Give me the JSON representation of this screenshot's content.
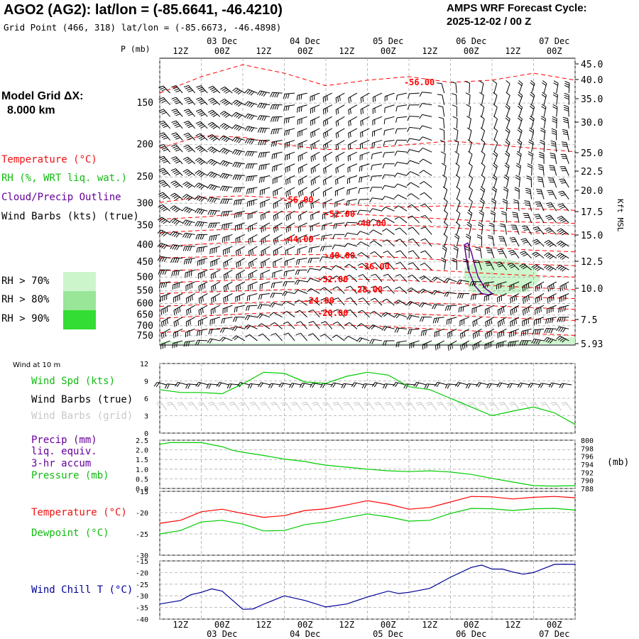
{
  "header": {
    "title": "AGO2 (AG2):  lat/lon = (-85.6641, -46.4210)",
    "grid_point": "Grid Point (466, 318) lat/lon = (-85.6673, -46.4898)",
    "cycle_line1": "AMPS WRF Forecast Cycle:",
    "cycle_line2": "2025-12-02 / 00  Z"
  },
  "left_panel": {
    "model_grid_line1": "Model Grid ΔX:",
    "model_grid_line2": "8.000 km",
    "legend_temperature": "Temperature (°C)",
    "legend_rh": "RH (%, WRT liq. wat.)",
    "legend_cloud": "Cloud/Precip Outline",
    "legend_wind": "Wind Barbs (kts) (true)",
    "rh_bins": [
      {
        "label": "RH > 70%",
        "color": "#ccf5cc"
      },
      {
        "label": "RH > 80%",
        "color": "#99e699"
      },
      {
        "label": "RH > 90%",
        "color": "#33dd33"
      }
    ],
    "wind10_title": "Wind at 10 m",
    "wind10_spd": "Wind Spd (kts)",
    "wind10_barbs_true": "Wind Barbs (true)",
    "wind10_barbs_grid": "Wind Barbs (grid)",
    "precip_line1": "Precip (mm)",
    "precip_line2": "liq. equiv.",
    "precip_line3": "3-hr accum",
    "pressure_label": "Pressure (mb)",
    "temp_label": "Temperature (°C)",
    "dew_label": "Dewpoint (°C)",
    "windchill_label": "Wind Chill T (°C)"
  },
  "axes": {
    "p_label": "P (mb)",
    "kft_label": "Kft MSL",
    "mb_label": "(mb)",
    "time_labels": [
      "12Z",
      "00Z",
      "12Z",
      "00Z",
      "12Z",
      "00Z",
      "12Z",
      "00Z",
      "12Z",
      "00Z"
    ],
    "date_labels": [
      "03 Dec",
      "04 Dec",
      "05 Dec",
      "06 Dec",
      "07 Dec"
    ]
  },
  "colors": {
    "temperature": "#ff0000",
    "rh": "#00cc00",
    "cloud": "#660099",
    "pressure": "#00cc00",
    "windchill": "#000099",
    "grid": "#aaaaaa"
  },
  "chart_data": [
    {
      "type": "heatmap",
      "name": "time-height cross section",
      "x_hours": [
        0,
        120
      ],
      "pressure_ticks": [
        150,
        200,
        250,
        300,
        350,
        400,
        450,
        500,
        550,
        600,
        650,
        700,
        750
      ],
      "ylim_mb": [
        800,
        110
      ],
      "height_ticks_kft": [
        45.0,
        40.0,
        35.0,
        30.0,
        25.0,
        22.5,
        20.0,
        17.5,
        15.0,
        12.5,
        10.0,
        7.5,
        5.93
      ],
      "isotherm_labels": [
        {
          "label": "-56.00",
          "t": 75,
          "p": 130
        },
        {
          "label": "-56.00",
          "t": 40,
          "p": 293
        },
        {
          "label": "-52.00",
          "t": 52,
          "p": 323
        },
        {
          "label": "-48.00",
          "t": 61,
          "p": 345
        },
        {
          "label": "-44.00",
          "t": 40,
          "p": 385
        },
        {
          "label": "-40.00",
          "t": 52,
          "p": 431
        },
        {
          "label": "-36.00",
          "t": 62,
          "p": 465
        },
        {
          "label": "-32.00",
          "t": 50,
          "p": 508
        },
        {
          "label": "-28.00",
          "t": 60,
          "p": 545
        },
        {
          "label": "-24.00",
          "t": 46,
          "p": 589
        },
        {
          "label": "-20.00",
          "t": 50,
          "p": 642
        }
      ],
      "isotherms": [
        {
          "t_hours": [
            0,
            12,
            24,
            36,
            48,
            60,
            72,
            84,
            96,
            108,
            120
          ],
          "p_mb": [
            140,
            125,
            115,
            122,
            133,
            128,
            125,
            130,
            128,
            122,
            128
          ]
        },
        {
          "t_hours": [
            0,
            12,
            24,
            36,
            48,
            60,
            72,
            84,
            96,
            108,
            120
          ],
          "p_mb": [
            205,
            188,
            190,
            200,
            207,
            205,
            200,
            195,
            200,
            205,
            210
          ]
        },
        {
          "t_hours": [
            0,
            12,
            24,
            36,
            48,
            60,
            72,
            84,
            96,
            108,
            120
          ],
          "p_mb": [
            298,
            288,
            285,
            290,
            300,
            305,
            308,
            305,
            310,
            312,
            315
          ]
        },
        {
          "t_hours": [
            0,
            12,
            24,
            36,
            48,
            60,
            72,
            84,
            96,
            108,
            120
          ],
          "p_mb": [
            335,
            330,
            322,
            318,
            320,
            325,
            330,
            335,
            340,
            342,
            345
          ]
        },
        {
          "t_hours": [
            0,
            12,
            24,
            36,
            48,
            60,
            72,
            84,
            96,
            108,
            120
          ],
          "p_mb": [
            368,
            362,
            358,
            355,
            350,
            348,
            350,
            355,
            362,
            368,
            372
          ]
        },
        {
          "t_hours": [
            0,
            12,
            24,
            36,
            48,
            60,
            72,
            84,
            96,
            108,
            120
          ],
          "p_mb": [
            405,
            398,
            392,
            388,
            382,
            385,
            392,
            400,
            408,
            415,
            420
          ]
        },
        {
          "t_hours": [
            0,
            12,
            24,
            36,
            48,
            60,
            72,
            84,
            96,
            108,
            120
          ],
          "p_mb": [
            438,
            435,
            430,
            428,
            428,
            432,
            438,
            445,
            452,
            458,
            462
          ]
        },
        {
          "t_hours": [
            0,
            12,
            24,
            36,
            48,
            60,
            72,
            84,
            96,
            108,
            120
          ],
          "p_mb": [
            478,
            475,
            470,
            466,
            465,
            468,
            472,
            480,
            488,
            495,
            500
          ]
        },
        {
          "t_hours": [
            0,
            12,
            24,
            36,
            48,
            60,
            72,
            84,
            96,
            108,
            120
          ],
          "p_mb": [
            520,
            515,
            510,
            505,
            505,
            508,
            512,
            520,
            530,
            538,
            545
          ]
        },
        {
          "t_hours": [
            0,
            12,
            24,
            36,
            48,
            60,
            72,
            84,
            96,
            108,
            120
          ],
          "p_mb": [
            560,
            555,
            550,
            545,
            545,
            548,
            552,
            558,
            565,
            575,
            580
          ]
        },
        {
          "t_hours": [
            0,
            12,
            24,
            36,
            48,
            60,
            72,
            84,
            96,
            108,
            120
          ],
          "p_mb": [
            612,
            605,
            598,
            592,
            590,
            592,
            596,
            602,
            610,
            618,
            625
          ]
        },
        {
          "t_hours": [
            0,
            12,
            24,
            36,
            48,
            60,
            72,
            84,
            96,
            108,
            120
          ],
          "p_mb": [
            665,
            655,
            645,
            638,
            635,
            640,
            645,
            652,
            660,
            668,
            675
          ]
        },
        {
          "t_hours": [
            0,
            12,
            24,
            36,
            48,
            60,
            72,
            84,
            96,
            108,
            120
          ],
          "p_mb": [
            735,
            720,
            705,
            698,
            695,
            700,
            710,
            720,
            730,
            740,
            748
          ]
        }
      ],
      "rh_region_70": {
        "t_hours": [
          88,
          93,
          100,
          108,
          110,
          106,
          98,
          90,
          88
        ],
        "p_mb": [
          470,
          440,
          440,
          465,
          510,
          555,
          565,
          555,
          510
        ]
      },
      "rh_region_surface": {
        "t_hours": [
          0,
          3,
          10,
          20,
          40,
          60,
          80,
          95,
          110,
          118,
          120,
          120,
          0
        ],
        "p_mb": [
          785,
          780,
          786,
          790,
          790,
          790,
          790,
          785,
          780,
          760,
          755,
          795,
          795
        ]
      },
      "cloud_outline": {
        "t_hours": [
          88,
          89,
          90,
          91,
          92,
          94,
          96,
          95,
          93,
          91,
          89,
          88
        ],
        "p_mb": [
          400,
          395,
          420,
          460,
          500,
          540,
          560,
          565,
          560,
          530,
          470,
          400
        ]
      }
    },
    {
      "type": "line",
      "name": "10 m wind speed",
      "title": "Wind at 10 m",
      "ylabel": "Wind Spd (kts)",
      "ylim": [
        0,
        12
      ],
      "yticks": [
        0,
        3,
        6,
        9,
        12
      ],
      "x_hours": [
        0,
        6,
        12,
        18,
        24,
        30,
        36,
        42,
        48,
        54,
        60,
        66,
        72,
        78,
        84,
        90,
        96,
        102,
        108,
        114,
        120
      ],
      "values": [
        7.5,
        7.0,
        7.0,
        6.8,
        8.5,
        10.5,
        10.3,
        8.8,
        8.6,
        9.8,
        10.5,
        10.0,
        8.0,
        7.5,
        6.0,
        4.5,
        3.0,
        3.8,
        4.5,
        3.5,
        1.5
      ]
    },
    {
      "type": "line",
      "name": "precip and surface pressure",
      "ylabel_left": "Precip (mm)",
      "ylim_precip": [
        0,
        2.5
      ],
      "precip_ticks": [
        0,
        0.5,
        1.0,
        1.5,
        2.0,
        2.5
      ],
      "precip_values": [],
      "ylabel_right": "Pressure (mb)",
      "ylim_pressure": [
        788,
        800
      ],
      "pressure_ticks": [
        788,
        790,
        792,
        794,
        796,
        798,
        800
      ],
      "x_hours": [
        0,
        3,
        6,
        12,
        18,
        21,
        24,
        30,
        36,
        42,
        45,
        48,
        54,
        60,
        66,
        72,
        78,
        84,
        90,
        96,
        102,
        108,
        114,
        120
      ],
      "pressure_values": [
        799.0,
        799.4,
        799.4,
        799.4,
        798.4,
        797.5,
        797.0,
        796.2,
        795.3,
        794.7,
        794.2,
        793.8,
        793.3,
        792.8,
        792.4,
        792.2,
        792.4,
        792.1,
        791.5,
        790.5,
        789.6,
        788.7,
        788.6,
        788.7
      ]
    },
    {
      "type": "line",
      "name": "temperature and dewpoint",
      "ylim": [
        -30,
        -15
      ],
      "yticks": [
        -30,
        -25,
        -20,
        -15
      ],
      "x_hours": [
        0,
        6,
        12,
        18,
        24,
        30,
        36,
        42,
        48,
        54,
        60,
        66,
        72,
        78,
        84,
        90,
        96,
        102,
        108,
        114,
        120
      ],
      "series": [
        {
          "name": "Temperature (°C)",
          "values": [
            -22.5,
            -21.8,
            -19.8,
            -19.2,
            -20.2,
            -21.1,
            -20.7,
            -19.5,
            -19.1,
            -18.2,
            -17.2,
            -18.0,
            -19.2,
            -18.8,
            -17.5,
            -16.2,
            -16.3,
            -16.8,
            -16.4,
            -16.2,
            -16.5
          ]
        },
        {
          "name": "Dewpoint (°C)",
          "values": [
            -25.0,
            -24.2,
            -22.2,
            -21.8,
            -22.7,
            -24.3,
            -24.2,
            -22.8,
            -22.2,
            -21.2,
            -20.3,
            -21.0,
            -22.0,
            -21.8,
            -20.2,
            -19.0,
            -19.1,
            -19.5,
            -19.1,
            -19.0,
            -19.4
          ]
        }
      ]
    },
    {
      "type": "line",
      "name": "wind chill",
      "ylabel": "Wind Chill T (°C)",
      "ylim": [
        -40,
        -15
      ],
      "yticks": [
        -40,
        -35,
        -30,
        -25,
        -20,
        -15
      ],
      "x_hours": [
        0,
        6,
        9,
        12,
        15,
        18,
        24,
        27,
        30,
        36,
        42,
        48,
        54,
        60,
        66,
        69,
        72,
        78,
        84,
        90,
        93,
        96,
        99,
        102,
        105,
        108,
        114,
        117,
        120
      ],
      "values": [
        -33.5,
        -32.0,
        -29.5,
        -28.5,
        -27.0,
        -28.0,
        -35.8,
        -35.6,
        -33.6,
        -30.0,
        -32.0,
        -34.8,
        -33.5,
        -30.5,
        -28.0,
        -29.0,
        -28.5,
        -26.8,
        -22.0,
        -17.8,
        -16.8,
        -18.5,
        -18.5,
        -19.8,
        -20.7,
        -20.0,
        -16.5,
        -16.4,
        -16.5
      ]
    }
  ]
}
